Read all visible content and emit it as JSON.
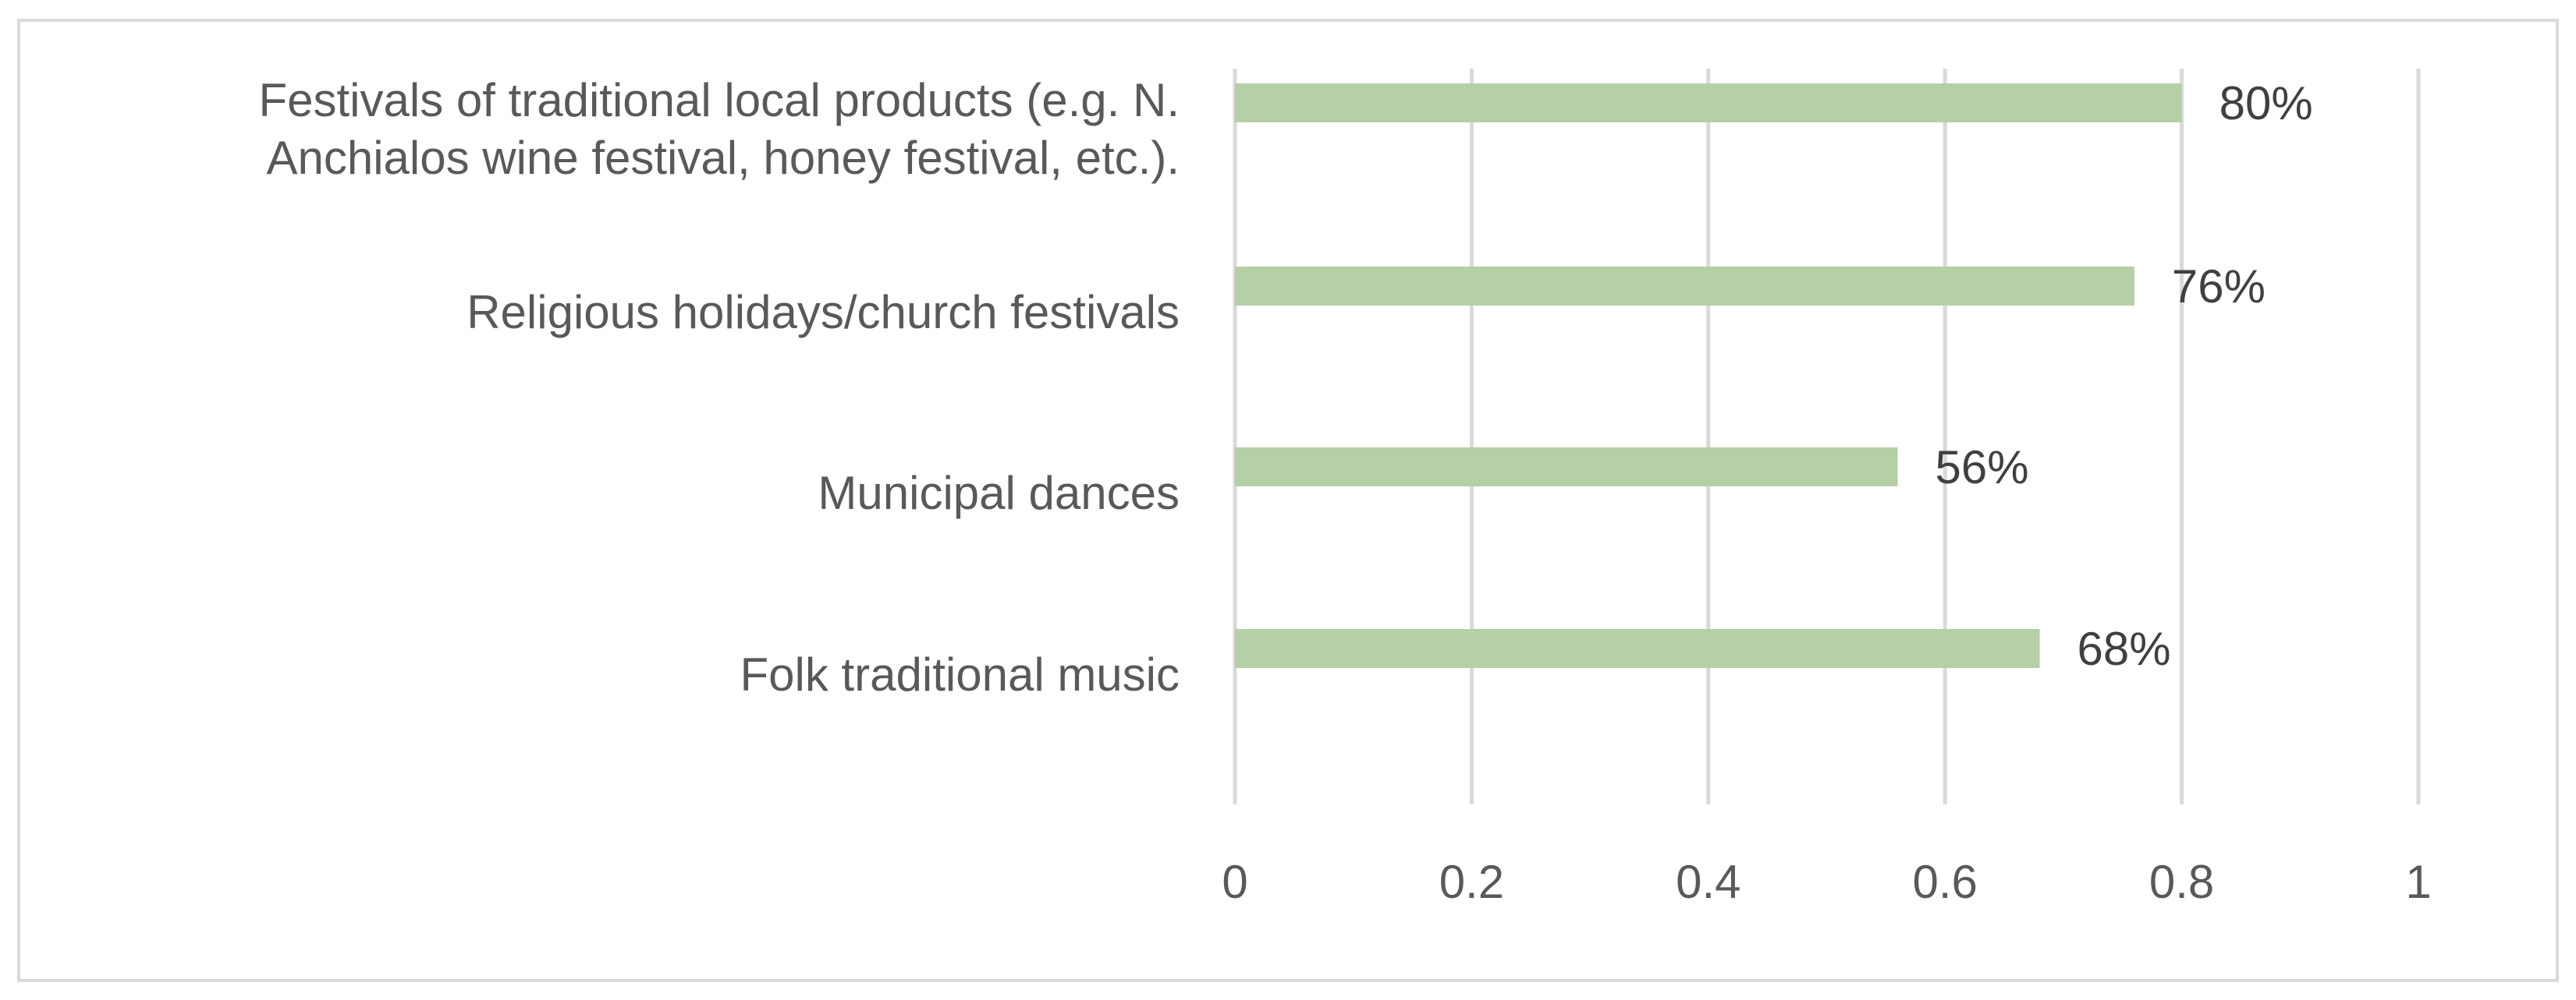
{
  "chart_data": {
    "type": "bar",
    "orientation": "horizontal",
    "categories": [
      [
        "Festivals of traditional local products (e.g. N.",
        "Anchialos wine festival, honey festival, etc.)."
      ],
      [
        "Religious holidays/church festivals"
      ],
      [
        "Municipal dances"
      ],
      [
        "Folk traditional music"
      ]
    ],
    "values": [
      0.8,
      0.76,
      0.56,
      0.68
    ],
    "data_labels": [
      "80%",
      "76%",
      "56%",
      "68%"
    ],
    "xlim": [
      0,
      1
    ],
    "x_ticks": [
      0,
      0.2,
      0.4,
      0.6,
      0.8,
      1
    ],
    "x_tick_labels": [
      "0",
      "0.2",
      "0.4",
      "0.6",
      "0.8",
      "1"
    ],
    "grid": "vertical",
    "legend": "none",
    "bar_color": "#b5cfa7",
    "grid_color": "#d9d9d9",
    "border_color": "#d9d9d9"
  }
}
